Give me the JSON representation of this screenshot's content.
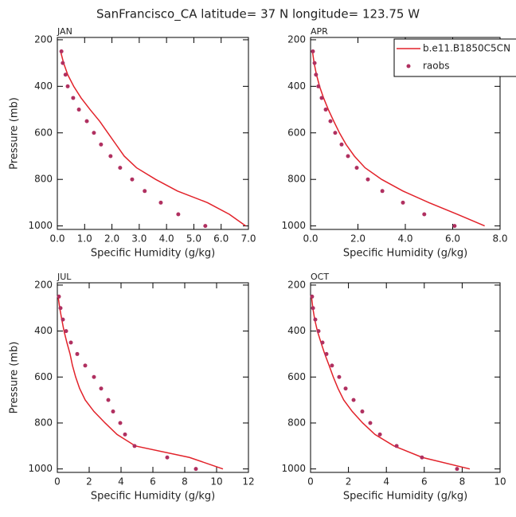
{
  "title": "SanFrancisco_CA  latitude= 37 N longitude= 123.75 W",
  "chart_data": [
    {
      "type": "line",
      "title": "JAN",
      "xlabel": "Specific Humidity (g/kg)",
      "ylabel": "Pressure (mb)",
      "xlim": [
        0,
        7
      ],
      "xticks": [
        {
          "value": 0,
          "label": "0.0"
        },
        {
          "value": 1,
          "label": "1.0"
        },
        {
          "value": 2,
          "label": "2.0"
        },
        {
          "value": 3,
          "label": "3.0"
        },
        {
          "value": 4,
          "label": "4.0"
        },
        {
          "value": 5,
          "label": "5.0"
        },
        {
          "value": 6,
          "label": "6.0"
        },
        {
          "value": 7,
          "label": "7.0"
        }
      ],
      "ylim": [
        1015,
        190
      ],
      "yticks": [
        200,
        400,
        600,
        800,
        1000
      ],
      "series": [
        {
          "type": "line",
          "color": "#e2222a",
          "x": [
            0.12,
            0.23,
            0.38,
            0.6,
            0.87,
            1.2,
            1.55,
            1.85,
            2.15,
            2.45,
            2.9,
            3.6,
            4.4,
            5.5,
            6.3,
            6.9
          ],
          "y": [
            250,
            300,
            350,
            400,
            450,
            500,
            550,
            600,
            650,
            700,
            750,
            800,
            850,
            900,
            950,
            1000
          ]
        },
        {
          "type": "scatter",
          "color": "#b03060",
          "x": [
            0.15,
            0.2,
            0.3,
            0.38,
            0.58,
            0.79,
            1.08,
            1.34,
            1.6,
            1.95,
            2.3,
            2.74,
            3.2,
            3.79,
            4.43,
            5.42
          ],
          "y": [
            250,
            300,
            350,
            400,
            450,
            500,
            550,
            600,
            650,
            700,
            750,
            800,
            850,
            900,
            950,
            1000
          ]
        }
      ]
    },
    {
      "type": "line",
      "title": "APR",
      "xlabel": "Specific Humidity (g/kg)",
      "xlim": [
        0,
        8
      ],
      "xticks": [
        {
          "value": 0,
          "label": "0.0"
        },
        {
          "value": 2,
          "label": "2.0"
        },
        {
          "value": 4,
          "label": "4.0"
        },
        {
          "value": 6,
          "label": "6.0"
        },
        {
          "value": 8,
          "label": "8.0"
        }
      ],
      "ylim": [
        1015,
        190
      ],
      "yticks": [
        200,
        400,
        600,
        800,
        1000
      ],
      "legend": "upper right",
      "series": [
        {
          "name": "b.e11.B1850C5CN",
          "type": "line",
          "color": "#e2222a",
          "x": [
            0.08,
            0.15,
            0.25,
            0.38,
            0.55,
            0.75,
            0.98,
            1.22,
            1.5,
            1.85,
            2.3,
            3.0,
            3.9,
            5.0,
            6.2,
            7.35
          ],
          "y": [
            250,
            300,
            350,
            400,
            450,
            500,
            550,
            600,
            650,
            700,
            750,
            800,
            850,
            900,
            950,
            1000
          ]
        },
        {
          "name": "raobs",
          "type": "scatter",
          "color": "#b03060",
          "x": [
            0.1,
            0.17,
            0.23,
            0.33,
            0.47,
            0.64,
            0.84,
            1.04,
            1.31,
            1.58,
            1.95,
            2.42,
            3.03,
            3.9,
            4.8,
            6.08
          ],
          "y": [
            250,
            300,
            350,
            400,
            450,
            500,
            550,
            600,
            650,
            700,
            750,
            800,
            850,
            900,
            950,
            1000
          ]
        }
      ]
    },
    {
      "type": "line",
      "title": "JUL",
      "xlabel": "Specific Humidity (g/kg)",
      "ylabel": "Pressure (mb)",
      "xlim": [
        0,
        12
      ],
      "xticks": [
        0,
        2,
        4,
        6,
        8,
        10,
        12
      ],
      "ylim": [
        1015,
        190
      ],
      "yticks": [
        200,
        400,
        600,
        800,
        1000
      ],
      "series": [
        {
          "type": "line",
          "color": "#e2222a",
          "x": [
            0.05,
            0.15,
            0.28,
            0.42,
            0.6,
            0.8,
            0.95,
            1.15,
            1.4,
            1.75,
            2.3,
            3.0,
            3.75,
            4.9,
            8.3,
            10.4
          ],
          "y": [
            250,
            300,
            350,
            400,
            450,
            500,
            550,
            600,
            650,
            700,
            750,
            800,
            850,
            900,
            950,
            1000
          ]
        },
        {
          "type": "scatter",
          "color": "#b03060",
          "x": [
            0.1,
            0.2,
            0.35,
            0.55,
            0.85,
            1.25,
            1.75,
            2.3,
            2.75,
            3.2,
            3.5,
            3.95,
            4.25,
            4.85,
            6.9,
            8.7
          ],
          "y": [
            250,
            300,
            350,
            400,
            450,
            500,
            550,
            600,
            650,
            700,
            750,
            800,
            850,
            900,
            950,
            1000
          ]
        }
      ]
    },
    {
      "type": "line",
      "title": "OCT",
      "xlabel": "Specific Humidity (g/kg)",
      "xlim": [
        0,
        10
      ],
      "xticks": [
        0,
        2,
        4,
        6,
        8,
        10
      ],
      "ylim": [
        1015,
        190
      ],
      "yticks": [
        200,
        400,
        600,
        800,
        1000
      ],
      "series": [
        {
          "type": "line",
          "color": "#e2222a",
          "x": [
            0.05,
            0.12,
            0.22,
            0.36,
            0.55,
            0.75,
            0.98,
            1.2,
            1.45,
            1.75,
            2.2,
            2.75,
            3.4,
            4.4,
            5.9,
            8.4
          ],
          "y": [
            250,
            300,
            350,
            400,
            450,
            500,
            550,
            600,
            650,
            700,
            750,
            800,
            850,
            900,
            950,
            1000
          ]
        },
        {
          "type": "scatter",
          "color": "#b03060",
          "x": [
            0.08,
            0.13,
            0.25,
            0.42,
            0.63,
            0.84,
            1.13,
            1.51,
            1.85,
            2.27,
            2.73,
            3.15,
            3.66,
            4.54,
            5.88,
            7.73
          ],
          "y": [
            250,
            300,
            350,
            400,
            450,
            500,
            550,
            600,
            650,
            700,
            750,
            800,
            850,
            900,
            950,
            1000
          ]
        }
      ]
    }
  ]
}
